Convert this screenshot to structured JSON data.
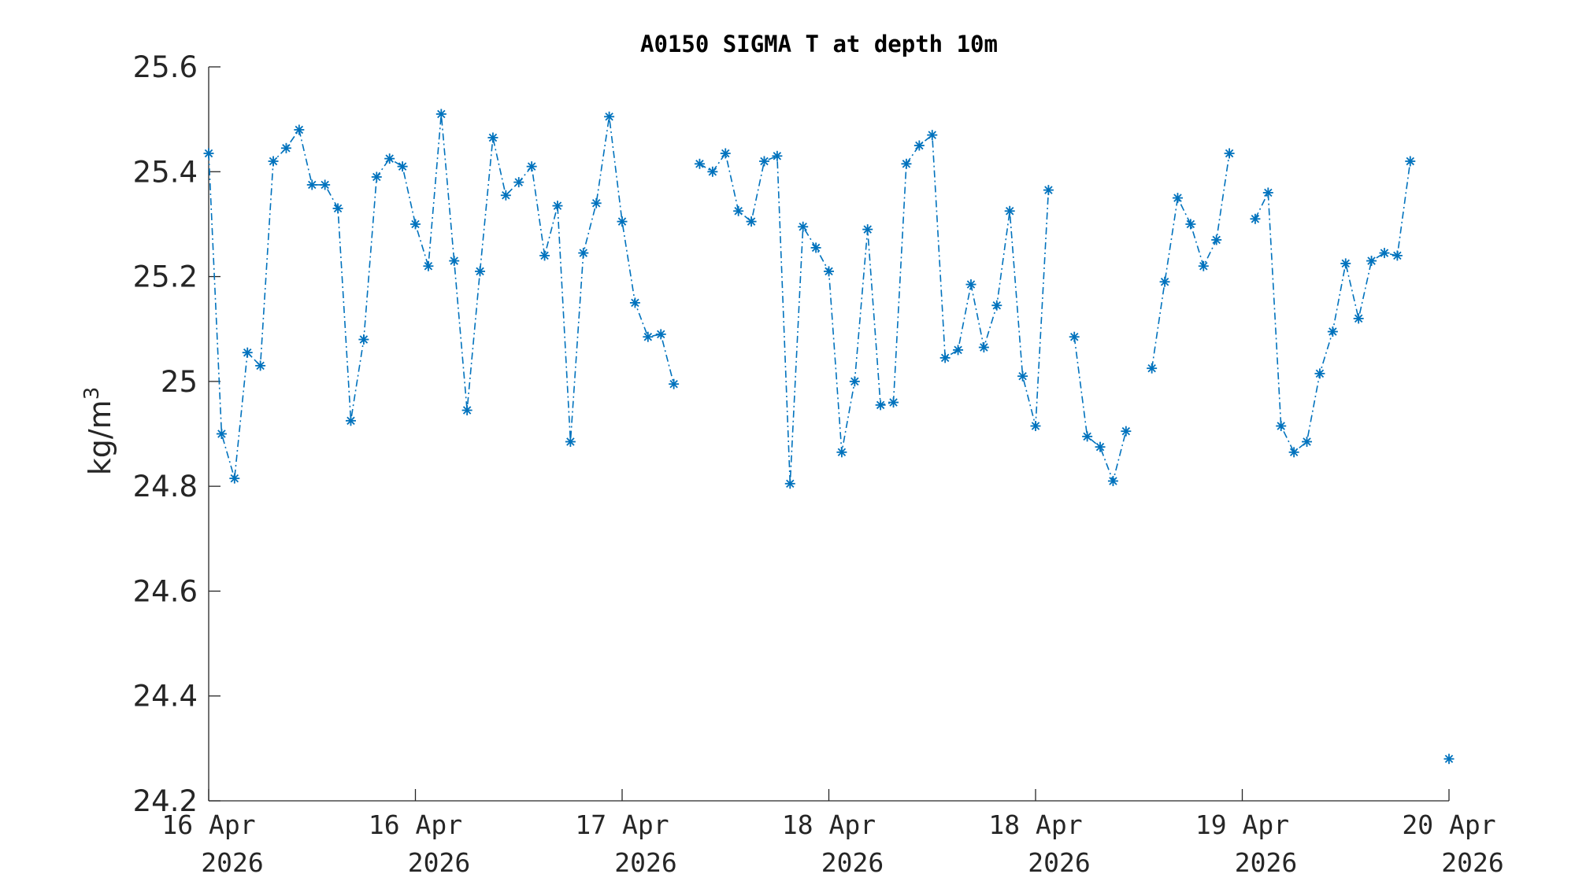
{
  "colors": {
    "series": "#0072BD",
    "axis": "#262626"
  },
  "chart_data": {
    "type": "line",
    "title": "A0150 SIGMA T at depth 10m",
    "ylabel": "kg/m",
    "ylabel_superscript": "3",
    "ylim": [
      24.2,
      25.6
    ],
    "yticks": [
      24.2,
      24.4,
      24.6,
      24.8,
      25,
      25.2,
      25.4,
      25.6
    ],
    "ytick_labels": [
      "24.2",
      "24.4",
      "24.6",
      "24.8",
      "25",
      "25.2",
      "25.4",
      "25.6"
    ],
    "x_unit": "hours since first tick",
    "xlim": [
      0,
      96
    ],
    "xtick_labels": [
      {
        "line1": "16 Apr",
        "line2": "2026"
      },
      {
        "line1": "16 Apr",
        "line2": "2026"
      },
      {
        "line1": "17 Apr",
        "line2": "2026"
      },
      {
        "line1": "18 Apr",
        "line2": "2026"
      },
      {
        "line1": "18 Apr",
        "line2": "2026"
      },
      {
        "line1": "19 Apr",
        "line2": "2026"
      },
      {
        "line1": "20 Apr",
        "line2": "2026"
      }
    ],
    "xtick_hours": [
      0,
      16,
      32,
      48,
      64,
      80,
      96
    ],
    "marker": "asterisk",
    "line_style": "dash-dot",
    "grid": false,
    "series": [
      {
        "x": [
          0,
          1,
          2,
          3,
          4,
          5,
          6,
          7,
          8,
          9,
          10,
          11,
          12,
          13,
          14,
          15,
          16,
          17,
          18,
          19,
          20,
          21,
          22,
          23,
          24,
          25,
          26,
          27,
          28,
          29,
          30,
          31,
          32,
          33,
          34,
          35,
          36,
          37,
          38,
          39,
          40,
          41,
          42,
          43,
          44,
          45,
          46,
          47,
          48,
          49,
          50,
          51,
          52,
          53,
          54,
          55,
          56,
          57,
          58,
          59,
          60,
          61,
          62,
          63,
          64,
          65,
          66,
          67,
          68,
          69,
          70,
          71,
          72,
          73,
          74,
          75,
          76,
          77,
          78,
          79,
          80,
          81,
          82,
          83,
          84,
          85,
          86,
          87,
          88,
          89,
          90,
          91,
          92,
          93,
          94,
          95,
          96
        ],
        "values": [
          25.435,
          24.9,
          24.815,
          25.055,
          25.03,
          25.42,
          25.445,
          25.48,
          25.375,
          25.375,
          25.33,
          24.925,
          25.08,
          25.39,
          25.425,
          25.41,
          25.3,
          25.22,
          25.51,
          25.23,
          24.945,
          25.21,
          25.465,
          25.355,
          25.38,
          25.41,
          25.24,
          25.335,
          24.885,
          25.245,
          25.34,
          25.505,
          25.305,
          25.15,
          25.085,
          25.09,
          24.995,
          null,
          25.415,
          25.4,
          25.435,
          25.325,
          25.305,
          25.42,
          25.43,
          24.805,
          25.295,
          25.255,
          25.21,
          24.865,
          25.0,
          25.29,
          24.955,
          24.96,
          25.415,
          25.45,
          25.47,
          25.045,
          25.06,
          25.185,
          25.065,
          25.145,
          25.325,
          25.01,
          24.915,
          25.365,
          null,
          25.085,
          24.895,
          24.875,
          24.81,
          24.905,
          null,
          25.025,
          25.19,
          25.35,
          25.3,
          25.22,
          25.27,
          25.435,
          null,
          25.31,
          25.36,
          24.915,
          24.865,
          24.885,
          25.015,
          25.095,
          25.225,
          25.12,
          25.23,
          25.245,
          25.24,
          25.42,
          null,
          null,
          24.28
        ]
      }
    ]
  }
}
